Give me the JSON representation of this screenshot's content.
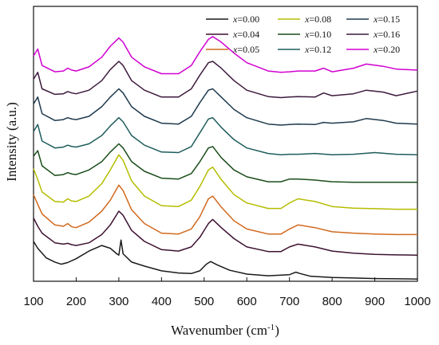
{
  "chart_data": {
    "type": "line",
    "title": "",
    "xlabel": "Wavenumber (cm",
    "xlabel_sup": "-1",
    "xlabel_end": ")",
    "ylabel": "Intensity (a.u.)",
    "xlim": [
      100,
      1000
    ],
    "ylim": [
      0,
      10
    ],
    "x_ticks": [
      "100",
      "200",
      "300",
      "400",
      "500",
      "600",
      "700",
      "800",
      "900",
      "1000"
    ],
    "y_ticks_labeled": false,
    "grid": false,
    "legend_position": "top-right",
    "legend_var": "x",
    "series": [
      {
        "name": "=0.00",
        "color": "#1a1a1a",
        "x": [
          100,
          110,
          130,
          150,
          165,
          180,
          200,
          230,
          260,
          280,
          295,
          300,
          305,
          310,
          330,
          360,
          400,
          440,
          470,
          490,
          505,
          515,
          530,
          560,
          600,
          650,
          700,
          715,
          725,
          750,
          800,
          850,
          900,
          950,
          1000
        ],
        "y": [
          1.45,
          1.2,
          0.85,
          0.7,
          0.62,
          0.68,
          0.82,
          1.1,
          1.3,
          1.2,
          1.0,
          0.95,
          1.5,
          1.0,
          0.7,
          0.55,
          0.38,
          0.3,
          0.28,
          0.38,
          0.62,
          0.72,
          0.6,
          0.4,
          0.26,
          0.2,
          0.24,
          0.33,
          0.28,
          0.18,
          0.14,
          0.12,
          0.1,
          0.09,
          0.08
        ]
      },
      {
        "name": "=0.04",
        "color": "#3d1230",
        "x": [
          100,
          110,
          120,
          150,
          170,
          180,
          190,
          200,
          230,
          260,
          280,
          300,
          310,
          330,
          360,
          400,
          440,
          470,
          490,
          510,
          520,
          540,
          570,
          600,
          650,
          680,
          700,
          720,
          760,
          800,
          850,
          900,
          950,
          1000
        ],
        "y": [
          2.3,
          2.0,
          1.75,
          1.4,
          1.35,
          1.38,
          1.33,
          1.3,
          1.4,
          1.7,
          2.05,
          2.55,
          2.4,
          1.85,
          1.45,
          1.15,
          1.1,
          1.25,
          1.6,
          2.1,
          2.25,
          1.95,
          1.55,
          1.25,
          1.08,
          1.08,
          1.25,
          1.35,
          1.25,
          1.1,
          1.02,
          0.98,
          0.96,
          0.95
        ]
      },
      {
        "name": "=0.05",
        "color": "#d2691e",
        "x": [
          100,
          110,
          120,
          150,
          170,
          180,
          190,
          200,
          230,
          260,
          280,
          300,
          310,
          330,
          360,
          400,
          440,
          470,
          490,
          510,
          520,
          540,
          570,
          600,
          650,
          680,
          700,
          720,
          760,
          800,
          850,
          900,
          950,
          1000
        ],
        "y": [
          3.15,
          2.8,
          2.45,
          2.05,
          2.0,
          2.1,
          1.98,
          1.95,
          2.15,
          2.55,
          2.95,
          3.5,
          3.3,
          2.6,
          2.1,
          1.75,
          1.72,
          1.9,
          2.35,
          3.0,
          3.1,
          2.7,
          2.2,
          1.9,
          1.72,
          1.72,
          1.9,
          2.05,
          1.95,
          1.8,
          1.75,
          1.72,
          1.7,
          1.7
        ]
      },
      {
        "name": "=0.08",
        "color": "#b5bd00",
        "x": [
          100,
          110,
          120,
          150,
          170,
          180,
          190,
          200,
          230,
          260,
          280,
          300,
          310,
          330,
          360,
          400,
          440,
          470,
          490,
          510,
          520,
          540,
          570,
          600,
          650,
          680,
          700,
          720,
          760,
          800,
          850,
          900,
          950,
          1000
        ],
        "y": [
          4.1,
          3.7,
          3.25,
          2.9,
          2.88,
          3.0,
          2.92,
          2.9,
          3.1,
          3.55,
          4.05,
          4.6,
          4.4,
          3.65,
          3.1,
          2.75,
          2.72,
          2.95,
          3.45,
          4.05,
          4.15,
          3.7,
          3.15,
          2.85,
          2.65,
          2.65,
          2.85,
          3.0,
          2.9,
          2.72,
          2.66,
          2.64,
          2.62,
          2.62
        ]
      },
      {
        "name": "=0.10",
        "color": "#1a4d1a",
        "x": [
          100,
          110,
          120,
          150,
          170,
          180,
          190,
          200,
          230,
          260,
          280,
          300,
          310,
          330,
          360,
          400,
          440,
          470,
          490,
          510,
          520,
          540,
          570,
          600,
          650,
          680,
          700,
          720,
          760,
          800,
          850,
          900,
          950,
          1000
        ],
        "y": [
          4.55,
          4.75,
          4.2,
          3.85,
          3.88,
          3.95,
          3.9,
          3.88,
          4.05,
          4.35,
          4.7,
          5.0,
          4.85,
          4.35,
          4.0,
          3.75,
          3.72,
          3.92,
          4.35,
          4.85,
          4.9,
          4.5,
          4.05,
          3.8,
          3.62,
          3.62,
          3.72,
          3.72,
          3.68,
          3.62,
          3.6,
          3.6,
          3.6,
          3.6
        ]
      },
      {
        "name": "=0.12",
        "color": "#1f5c5c",
        "x": [
          100,
          110,
          120,
          150,
          170,
          180,
          190,
          200,
          230,
          260,
          280,
          300,
          310,
          330,
          360,
          400,
          440,
          470,
          490,
          510,
          520,
          540,
          570,
          600,
          650,
          680,
          700,
          720,
          760,
          800,
          850,
          900,
          950,
          1000
        ],
        "y": [
          5.45,
          5.7,
          5.1,
          4.85,
          4.88,
          4.95,
          4.9,
          4.88,
          5.0,
          5.3,
          5.65,
          5.95,
          5.8,
          5.3,
          4.95,
          4.7,
          4.68,
          4.9,
          5.4,
          5.9,
          5.95,
          5.6,
          5.15,
          4.85,
          4.65,
          4.6,
          4.62,
          4.62,
          4.65,
          4.6,
          4.62,
          4.68,
          4.62,
          4.6
        ]
      },
      {
        "name": "=0.15",
        "color": "#1f3a4d",
        "x": [
          100,
          110,
          120,
          150,
          170,
          180,
          190,
          200,
          230,
          260,
          280,
          300,
          310,
          330,
          360,
          400,
          440,
          470,
          490,
          510,
          520,
          540,
          570,
          600,
          650,
          680,
          700,
          720,
          760,
          780,
          800,
          850,
          880,
          920,
          950,
          1000
        ],
        "y": [
          6.45,
          6.7,
          6.1,
          5.85,
          5.88,
          5.95,
          5.9,
          5.88,
          6.0,
          6.35,
          6.7,
          7.0,
          6.85,
          6.35,
          6.0,
          5.75,
          5.72,
          6.0,
          6.5,
          6.95,
          7.0,
          6.7,
          6.25,
          5.95,
          5.72,
          5.68,
          5.7,
          5.72,
          5.7,
          5.78,
          5.75,
          5.8,
          5.92,
          5.85,
          5.75,
          5.72
        ]
      },
      {
        "name": "=0.16",
        "color": "#3d1a3d",
        "x": [
          100,
          110,
          120,
          150,
          170,
          180,
          190,
          200,
          230,
          260,
          280,
          300,
          310,
          330,
          360,
          400,
          440,
          470,
          490,
          510,
          520,
          540,
          570,
          600,
          650,
          680,
          700,
          720,
          760,
          780,
          800,
          850,
          880,
          920,
          950,
          1000
        ],
        "y": [
          7.35,
          7.6,
          7.0,
          6.8,
          6.82,
          6.9,
          6.85,
          6.82,
          6.95,
          7.3,
          7.7,
          8.0,
          7.85,
          7.3,
          6.95,
          6.7,
          6.7,
          7.0,
          7.5,
          7.95,
          8.0,
          7.75,
          7.3,
          6.95,
          6.72,
          6.68,
          6.7,
          6.72,
          6.7,
          6.85,
          6.75,
          6.82,
          6.95,
          6.88,
          6.75,
          6.92
        ]
      },
      {
        "name": "=0.20",
        "color": "#d100d1",
        "x": [
          100,
          110,
          120,
          150,
          170,
          180,
          190,
          200,
          230,
          260,
          280,
          300,
          310,
          330,
          360,
          400,
          440,
          470,
          490,
          510,
          520,
          540,
          570,
          600,
          650,
          680,
          700,
          720,
          760,
          780,
          800,
          850,
          880,
          920,
          950,
          1000
        ],
        "y": [
          8.2,
          8.45,
          7.85,
          7.62,
          7.65,
          7.75,
          7.68,
          7.65,
          7.8,
          8.15,
          8.55,
          8.85,
          8.7,
          8.15,
          7.8,
          7.55,
          7.55,
          7.85,
          8.35,
          8.8,
          8.9,
          8.7,
          8.3,
          7.95,
          7.65,
          7.6,
          7.62,
          7.65,
          7.65,
          7.75,
          7.62,
          7.75,
          7.9,
          7.82,
          7.72,
          7.68
        ]
      }
    ]
  }
}
